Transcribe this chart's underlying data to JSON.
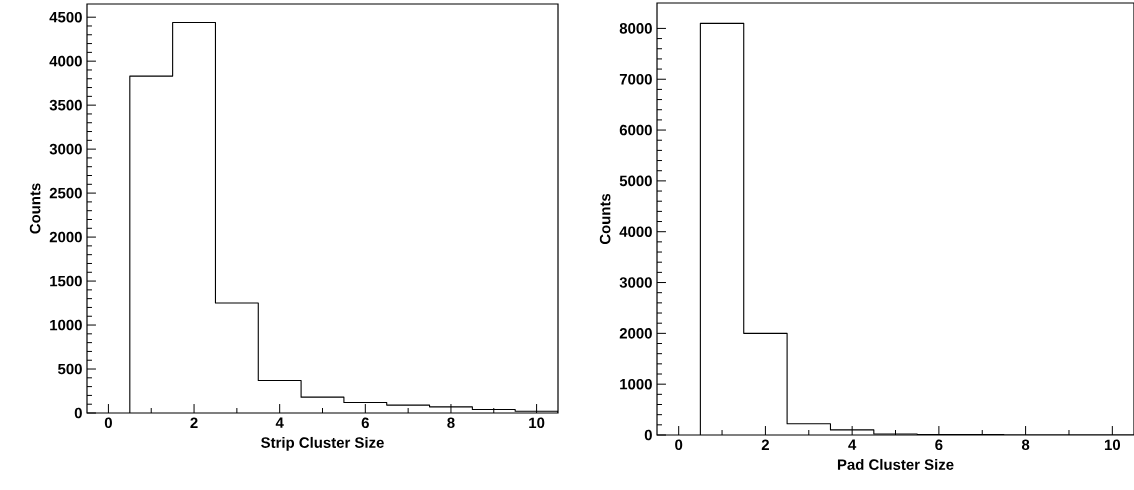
{
  "chart_data": [
    {
      "type": "histogram",
      "xlabel": "Strip Cluster Size",
      "ylabel": "Counts",
      "bins": [
        0.5,
        1.5,
        2.5,
        3.5,
        4.5,
        5.5,
        6.5,
        7.5,
        8.5,
        9.5,
        10.5
      ],
      "values": [
        3830,
        4440,
        1250,
        370,
        180,
        120,
        90,
        70,
        40,
        20
      ],
      "color": "#000000",
      "xlim": [
        -0.5,
        10.5
      ],
      "ylim": [
        0,
        4650
      ],
      "xticks": [
        0,
        2,
        4,
        6,
        8,
        10
      ],
      "yticks": [
        0,
        500,
        1000,
        1500,
        2000,
        2500,
        3000,
        3500,
        4000,
        4500
      ],
      "grid": false
    },
    {
      "type": "histogram",
      "xlabel": "Pad Cluster Size",
      "ylabel": "Counts",
      "bins": [
        0.5,
        1.5,
        2.5,
        3.5,
        4.5,
        5.5,
        6.5,
        7.5,
        8.5,
        9.5,
        10.5
      ],
      "values": [
        8100,
        2000,
        220,
        100,
        20,
        10,
        10,
        0,
        0,
        0
      ],
      "color": "#000000",
      "xlim": [
        -0.5,
        10.5
      ],
      "ylim": [
        0,
        8500
      ],
      "xticks": [
        0,
        2,
        4,
        6,
        8,
        10
      ],
      "yticks": [
        0,
        1000,
        2000,
        3000,
        4000,
        5000,
        6000,
        7000,
        8000
      ],
      "grid": false
    }
  ]
}
